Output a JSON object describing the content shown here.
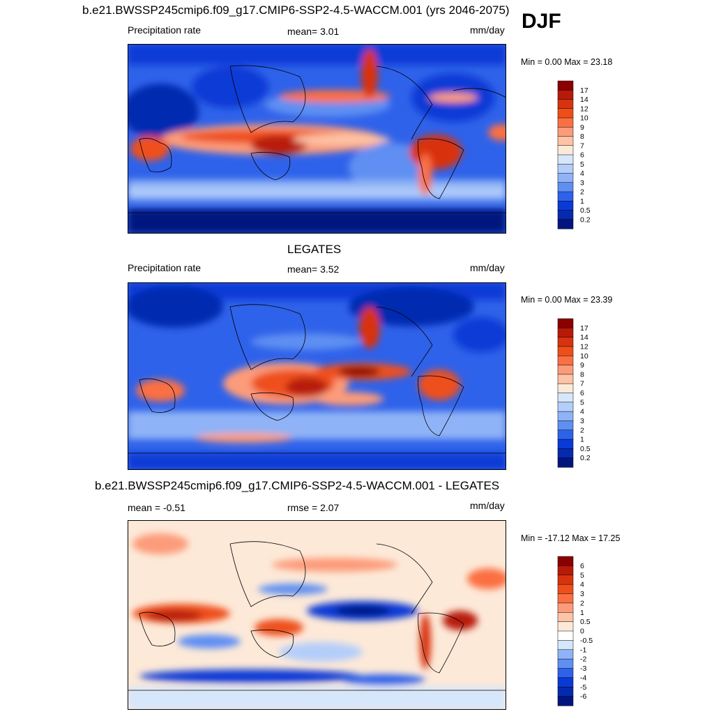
{
  "header": {
    "main_title": "b.e21.BWSSP245cmip6.f09_g17.CMIP6-SSP2-4.5-WACCM.001 (yrs 2046-2075)",
    "season": "DJF"
  },
  "chart_data": [
    {
      "type": "heatmap",
      "panel": "model",
      "title": "",
      "left_label": "Precipitation rate",
      "center_label": "mean=   3.01",
      "units": "mm/day",
      "minmax": "Min =   0.00 Max =  23.18",
      "levels": [
        "17",
        "14",
        "12",
        "10",
        "9",
        "8",
        "7",
        "6",
        "5",
        "4",
        "3",
        "2",
        "1",
        "0.5",
        "0.2"
      ],
      "colors": [
        "#8b0000",
        "#b81a0a",
        "#d8330f",
        "#ee4f1a",
        "#fb7043",
        "#fc9b7a",
        "#fdc3a6",
        "#fde9d8",
        "#d6e6fb",
        "#b4cefa",
        "#8fb3f6",
        "#5f8ff2",
        "#2f62ea",
        "#0a3ad6",
        "#052ab0",
        "#02157f"
      ]
    },
    {
      "type": "heatmap",
      "panel": "observations",
      "title": "LEGATES",
      "left_label": "Precipitation rate",
      "center_label": "mean=   3.52",
      "units": "mm/day",
      "minmax": "Min =   0.00 Max =  23.39",
      "levels": [
        "17",
        "14",
        "12",
        "10",
        "9",
        "8",
        "7",
        "6",
        "5",
        "4",
        "3",
        "2",
        "1",
        "0.5",
        "0.2"
      ],
      "colors": [
        "#8b0000",
        "#b81a0a",
        "#d8330f",
        "#ee4f1a",
        "#fb7043",
        "#fc9b7a",
        "#fdc3a6",
        "#fde9d8",
        "#d6e6fb",
        "#b4cefa",
        "#8fb3f6",
        "#5f8ff2",
        "#2f62ea",
        "#0a3ad6",
        "#052ab0",
        "#02157f"
      ]
    },
    {
      "type": "heatmap",
      "panel": "difference",
      "title": "b.e21.BWSSP245cmip6.f09_g17.CMIP6-SSP2-4.5-WACCM.001 - LEGATES",
      "left_label": "mean =  -0.51",
      "center_label": "rmse =   2.07",
      "units": "mm/day",
      "minmax": "Min = -17.12 Max =  17.25",
      "levels": [
        "6",
        "5",
        "4",
        "3",
        "2",
        "1",
        "0.5",
        "0",
        "-0.5",
        "-1",
        "-2",
        "-3",
        "-4",
        "-5",
        "-6"
      ],
      "colors": [
        "#8b0000",
        "#b81a0a",
        "#d8330f",
        "#ee4f1a",
        "#fb7043",
        "#fc9b7a",
        "#fdc3a6",
        "#fde9d8",
        "#ffffff",
        "#d6e6fb",
        "#8fb3f6",
        "#5f8ff2",
        "#2f62ea",
        "#0a3ad6",
        "#052ab0",
        "#02157f"
      ]
    }
  ]
}
